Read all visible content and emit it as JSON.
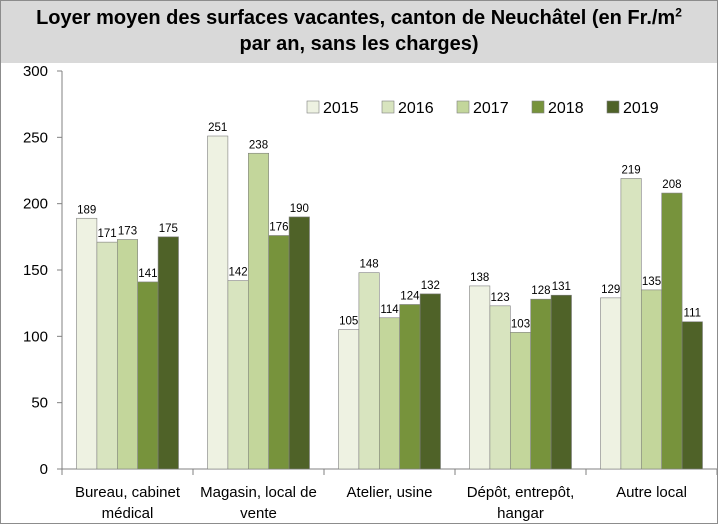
{
  "chart_data": {
    "type": "bar",
    "title_line1": "Loyer moyen des surfaces vacantes, canton de Neuchâtel (en Fr./m",
    "title_sup": "2",
    "title_line2": "par an, sans les charges)",
    "categories": [
      [
        "Bureau, cabinet",
        "médical"
      ],
      [
        "Magasin, local de",
        "vente"
      ],
      [
        "Atelier, usine"
      ],
      [
        "Dépôt, entrepôt,",
        "hangar"
      ],
      [
        "Autre local"
      ]
    ],
    "series": [
      {
        "name": "2015",
        "color": "#eef2e2",
        "values": [
          189,
          251,
          105,
          138,
          129
        ]
      },
      {
        "name": "2016",
        "color": "#d8e4bf",
        "values": [
          171,
          142,
          148,
          123,
          219
        ]
      },
      {
        "name": "2017",
        "color": "#c3d69b",
        "values": [
          173,
          238,
          114,
          103,
          135
        ]
      },
      {
        "name": "2018",
        "color": "#77933c",
        "values": [
          141,
          176,
          124,
          128,
          208
        ]
      },
      {
        "name": "2019",
        "color": "#4f6228",
        "values": [
          175,
          190,
          132,
          131,
          111
        ]
      }
    ],
    "ylim": [
      0,
      300
    ],
    "yticks": [
      0,
      50,
      100,
      150,
      200,
      250,
      300
    ],
    "grid": false,
    "legend": "top-right"
  }
}
